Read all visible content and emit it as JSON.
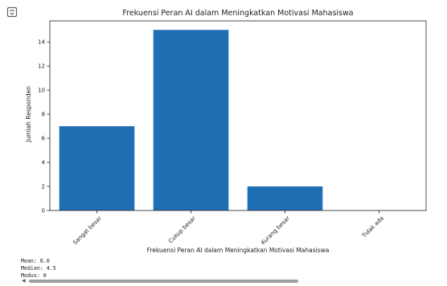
{
  "chart_data": {
    "type": "bar",
    "title": "Frekuensi Peran AI dalam Meningkatkan Motivasi Mahasiswa",
    "xlabel": "Frekuensi Peran AI dalam Meningkatkan Motivasi Mahasiswa",
    "ylabel": "Jumlah Responden",
    "categories": [
      "Sangat besar",
      "Cukup besar",
      "Kurang besar",
      "Tidak ada"
    ],
    "values": [
      7,
      15,
      2,
      0
    ],
    "ylim": [
      0,
      15.75
    ],
    "yticks": [
      0,
      2,
      4,
      6,
      8,
      10,
      12,
      14
    ],
    "bar_color": "#1f6fb4",
    "grid": false
  },
  "stats": {
    "mean": "Mean: 6.0",
    "median": "Median: 4.5",
    "mode": "Modus: 0"
  },
  "icons": {
    "output": "output-icon",
    "scroll_left": "scroll-left-arrow-icon"
  },
  "scroll_left_glyph": "◀"
}
